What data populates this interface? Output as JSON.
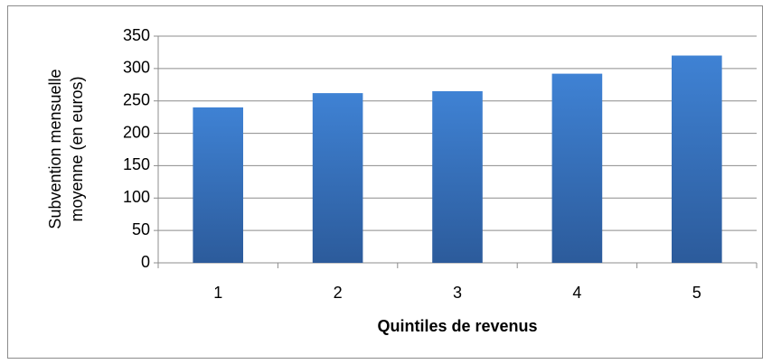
{
  "chart_data": {
    "type": "bar",
    "xlabel": "Quintiles de revenus",
    "ylabel": [
      "Subvention mensuelle",
      "moyenne (en euros)"
    ],
    "categories": [
      "1",
      "2",
      "3",
      "4",
      "5"
    ],
    "values": [
      240,
      262,
      265,
      292,
      320
    ],
    "gradient": [
      "#3f82d4",
      "#2c5b9b"
    ],
    "ylim": [
      0,
      350
    ],
    "yticks": [
      0,
      50,
      100,
      150,
      200,
      250,
      300,
      350
    ],
    "grid": true
  }
}
